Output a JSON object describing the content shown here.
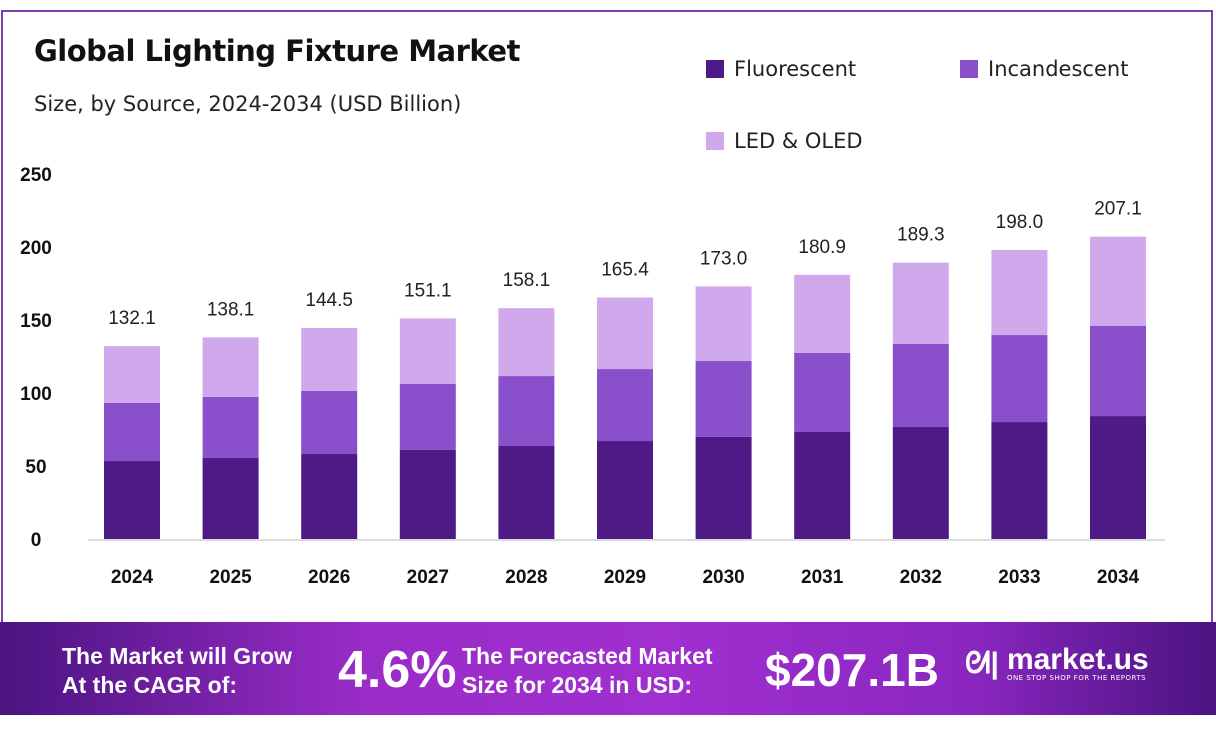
{
  "chart_data": {
    "type": "bar",
    "stacked": true,
    "title": "Global Lighting Fixture Market",
    "subtitle": "Size, by Source, 2024-2034 (USD Billion)",
    "categories": [
      "2024",
      "2025",
      "2026",
      "2027",
      "2028",
      "2029",
      "2030",
      "2031",
      "2032",
      "2033",
      "2034"
    ],
    "series": [
      {
        "name": "Fluorescent",
        "color": "#4e1a86",
        "values": [
          53.4,
          55.5,
          58.2,
          61.0,
          63.7,
          67.1,
          69.9,
          73.3,
          76.7,
          80.1,
          84.2
        ]
      },
      {
        "name": "Incandescent",
        "color": "#8a4fcb",
        "values": [
          39.8,
          41.8,
          43.2,
          45.2,
          47.9,
          49.3,
          52.0,
          54.1,
          56.9,
          59.6,
          61.7
        ]
      },
      {
        "name": "LED & OLED",
        "color": "#d0a8ec",
        "values": [
          38.9,
          40.8,
          43.1,
          44.9,
          46.5,
          49.0,
          51.1,
          53.5,
          55.7,
          58.3,
          61.2
        ]
      }
    ],
    "totals": [
      "132.1",
      "138.1",
      "144.5",
      "151.1",
      "158.1",
      "165.4",
      "173.0",
      "180.9",
      "189.3",
      "198.0",
      "207.1"
    ],
    "yticks": [
      "0",
      "50",
      "100",
      "150",
      "200",
      "250"
    ],
    "ylim": [
      0,
      250
    ],
    "grid": false,
    "legend_placement": "top-right"
  },
  "banner": {
    "cagr_label_1": "The Market will Grow",
    "cagr_label_2": "At the CAGR of:",
    "cagr_value": "4.6%",
    "forecast_label_1": "The Forecasted Market",
    "forecast_label_2": "Size for 2034 in USD:",
    "forecast_value": "$207.1B",
    "logo_name": "market.us",
    "logo_tagline": "ONE STOP SHOP FOR THE REPORTS"
  }
}
